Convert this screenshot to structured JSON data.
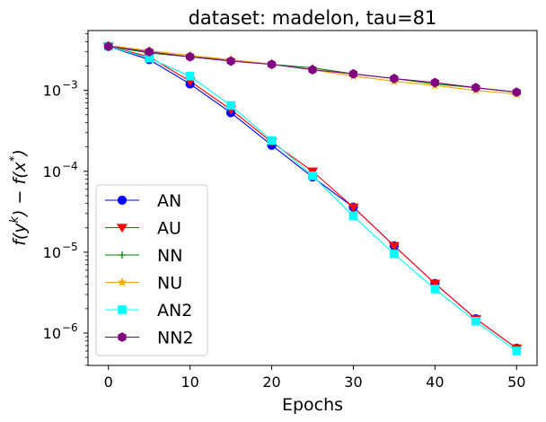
{
  "chart_data": {
    "type": "line",
    "title": "dataset: madelon, tau=81",
    "xlabel": "Epochs",
    "ylabel_parts": [
      "f(y",
      "k",
      ") − f(x",
      "*",
      ")"
    ],
    "xlim": [
      -2.5,
      52.5
    ],
    "ylog_range": [
      -6.4,
      -2.26
    ],
    "xticks": [
      0,
      10,
      20,
      30,
      40,
      50
    ],
    "xtick_labels": [
      "0",
      "10",
      "20",
      "30",
      "40",
      "50"
    ],
    "ytick_exponents": [
      -6,
      -5,
      -4,
      -3
    ],
    "ytick_base": "10",
    "ytick_sup": [
      "−6",
      "−5",
      "−4",
      "−3"
    ],
    "legend_position": "lower-left",
    "x": [
      0,
      5,
      10,
      15,
      20,
      25,
      30,
      35,
      40,
      45,
      50
    ],
    "series": [
      {
        "name": "AN",
        "color": "#0000ff",
        "marker": "circle",
        "values": [
          0.0035,
          0.0024,
          0.0012,
          0.00053,
          0.00021,
          8.5e-05,
          3.6e-05,
          1.2e-05,
          4.1e-06,
          1.5e-06,
          6.5e-07
        ]
      },
      {
        "name": "AU",
        "color": "#ff0000",
        "marker": "triangle-down",
        "values": [
          0.0035,
          0.0026,
          0.0013,
          0.00058,
          0.00023,
          0.0001,
          3.6e-05,
          1.2e-05,
          4.1e-06,
          1.5e-06,
          6.5e-07
        ]
      },
      {
        "name": "NN",
        "color": "#008000",
        "marker": "plus",
        "values": [
          0.0035,
          0.0029,
          0.0026,
          0.0024,
          0.0021,
          0.0019,
          0.0016,
          0.0014,
          0.0012,
          0.00108,
          0.00095
        ]
      },
      {
        "name": "NU",
        "color": "#ffa500",
        "marker": "star",
        "values": [
          0.0036,
          0.0031,
          0.0027,
          0.0024,
          0.0021,
          0.0018,
          0.0015,
          0.0013,
          0.00115,
          0.001,
          0.0009
        ]
      },
      {
        "name": "AN2",
        "color": "#00ffff",
        "marker": "square",
        "values": [
          0.0035,
          0.0025,
          0.0015,
          0.00065,
          0.00024,
          8.8e-05,
          2.8e-05,
          9.5e-06,
          3.5e-06,
          1.4e-06,
          6e-07
        ]
      },
      {
        "name": "NN2",
        "color": "#800080",
        "marker": "hexagon",
        "values": [
          0.0035,
          0.003,
          0.0026,
          0.0023,
          0.0021,
          0.0018,
          0.0016,
          0.0014,
          0.00125,
          0.00108,
          0.00095
        ]
      }
    ]
  }
}
